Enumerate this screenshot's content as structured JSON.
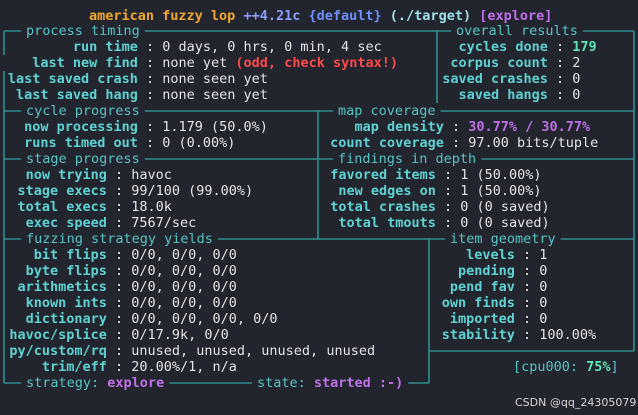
{
  "title": {
    "name": "american fuzzy lop",
    "version": "++4.21c",
    "banner": "{default}",
    "target": "(./target)",
    "mode": "[explore]"
  },
  "separator": ":",
  "panels": [
    {
      "title": "process timing",
      "rows": [
        {
          "label": "run time",
          "value": "0 days, 0 hrs, 0 min, 4 sec"
        },
        {
          "label": "last new find",
          "value": "none yet",
          "warning": "(odd, check syntax!)"
        },
        {
          "label": "last saved crash",
          "value": "none seen yet"
        },
        {
          "label": "last saved hang",
          "value": "none seen yet"
        }
      ]
    },
    {
      "title": "overall results",
      "rows": [
        {
          "label": "cycles done",
          "value": "179"
        },
        {
          "label": "corpus count",
          "value": "2"
        },
        {
          "label": "saved crashes",
          "value": "0"
        },
        {
          "label": "saved hangs",
          "value": "0"
        }
      ]
    },
    {
      "title": "cycle progress",
      "rows": [
        {
          "label": "now processing",
          "value": "1.179 (50.0%)"
        },
        {
          "label": "runs timed out",
          "value": "0 (0.00%)"
        }
      ]
    },
    {
      "title": "map coverage",
      "rows": [
        {
          "label": "map density",
          "value": "30.77% / 30.77%"
        },
        {
          "label": "count coverage",
          "value": "97.00 bits/tuple"
        }
      ]
    },
    {
      "title": "stage progress",
      "rows": [
        {
          "label": "now trying",
          "value": "havoc"
        },
        {
          "label": "stage execs",
          "value": "99/100 (99.00%)"
        },
        {
          "label": "total execs",
          "value": "18.0k"
        },
        {
          "label": "exec speed",
          "value": "7567/sec"
        }
      ]
    },
    {
      "title": "findings in depth",
      "rows": [
        {
          "label": "favored items",
          "value": "1 (50.00%)"
        },
        {
          "label": "new edges on",
          "value": "1 (50.00%)"
        },
        {
          "label": "total crashes",
          "value": "0 (0 saved)"
        },
        {
          "label": "total tmouts",
          "value": "0 (0 saved)"
        }
      ]
    },
    {
      "title": "fuzzing strategy yields",
      "rows": [
        {
          "label": "bit flips",
          "value": "0/0, 0/0, 0/0"
        },
        {
          "label": "byte flips",
          "value": "0/0, 0/0, 0/0"
        },
        {
          "label": "arithmetics",
          "value": "0/0, 0/0, 0/0"
        },
        {
          "label": "known ints",
          "value": "0/0, 0/0, 0/0"
        },
        {
          "label": "dictionary",
          "value": "0/0, 0/0, 0/0, 0/0"
        },
        {
          "label": "havoc/splice",
          "value": "0/17.9k, 0/0"
        },
        {
          "label": "py/custom/rq",
          "value": "unused, unused, unused, unused"
        },
        {
          "label": "trim/eff",
          "value": "20.00%/1, n/a"
        }
      ]
    },
    {
      "title": "item geometry",
      "rows": [
        {
          "label": "levels",
          "value": "1"
        },
        {
          "label": "pending",
          "value": "0"
        },
        {
          "label": "pend fav",
          "value": "0"
        },
        {
          "label": "own finds",
          "value": "0"
        },
        {
          "label": "imported",
          "value": "0"
        },
        {
          "label": "stability",
          "value": "100.00%"
        }
      ]
    }
  ],
  "cpu": {
    "label": "[cpu000:",
    "value": "75%",
    "close": "]"
  },
  "status": {
    "strategy_label": "strategy:",
    "strategy": "explore",
    "state_label": "state:",
    "state": "started :-)"
  },
  "watermark": "CSDN @qq_24305079"
}
